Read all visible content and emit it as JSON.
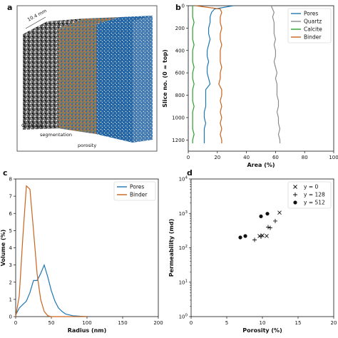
{
  "panel_labels": {
    "a": "a",
    "b": "b",
    "c": "c",
    "d": "d"
  },
  "panel_a": {
    "dimension": "10.4 mm",
    "labels": {
      "ct": "CT image",
      "segmentation": "segmentation",
      "porosity": "porosity"
    },
    "colors": {
      "ct": "#7a7a7a",
      "segmentation": "#8a7a5a",
      "porosity": "#2a6aa8"
    }
  },
  "chart_data": [
    {
      "panel": "b",
      "type": "line",
      "xlabel": "Area (%)",
      "ylabel": "Slice no. (0 = top)",
      "xlim": [
        0,
        100
      ],
      "ylim": [
        1300,
        0
      ],
      "y_inverted": true,
      "xticks": [
        "0",
        "20",
        "40",
        "60",
        "80",
        "100"
      ],
      "yticks": [
        "0",
        "200",
        "400",
        "600",
        "800",
        "1000",
        "1200"
      ],
      "legend_position": "top-right",
      "y": [
        0,
        30,
        60,
        100,
        150,
        200,
        250,
        300,
        350,
        400,
        450,
        500,
        550,
        600,
        650,
        700,
        750,
        800,
        850,
        900,
        950,
        1000,
        1050,
        1100,
        1150,
        1200,
        1230
      ],
      "series": [
        {
          "name": "Pores",
          "color": "#1f77b4",
          "values": [
            31,
            18,
            16,
            15,
            15,
            14,
            14,
            15,
            14,
            13,
            13,
            14,
            13,
            13,
            14,
            15,
            12,
            12,
            12,
            12,
            11,
            11,
            12,
            11,
            11,
            11,
            11
          ]
        },
        {
          "name": "Quartz",
          "color": "#8c8c8c",
          "values": [
            57,
            58,
            59,
            58,
            59,
            59,
            59,
            60,
            59,
            60,
            60,
            59,
            60,
            61,
            60,
            61,
            61,
            61,
            62,
            62,
            61,
            62,
            62,
            63,
            62,
            63,
            63
          ]
        },
        {
          "name": "Calcite",
          "color": "#2ca02c",
          "values": [
            3,
            3,
            3,
            3,
            4,
            3,
            3,
            3,
            4,
            3,
            3,
            3,
            4,
            3,
            3,
            4,
            3,
            3,
            3,
            4,
            3,
            3,
            3,
            3,
            4,
            3,
            3
          ]
        },
        {
          "name": "Binder",
          "color": "#c8641e",
          "values": [
            5,
            22,
            23,
            22,
            22,
            23,
            22,
            22,
            23,
            22,
            22,
            22,
            23,
            22,
            22,
            21,
            23,
            23,
            22,
            23,
            22,
            23,
            22,
            23,
            22,
            23,
            23
          ]
        }
      ]
    },
    {
      "panel": "c",
      "type": "line",
      "xlabel": "Radius (nm)",
      "ylabel": "Volume (%)",
      "xlim": [
        0,
        200
      ],
      "ylim": [
        0,
        8
      ],
      "xticks": [
        "0",
        "50",
        "100",
        "150",
        "200"
      ],
      "yticks": [
        "0",
        "1",
        "2",
        "3",
        "4",
        "5",
        "6",
        "7",
        "8"
      ],
      "legend_position": "top-right",
      "series": [
        {
          "name": "Pores",
          "color": "#1f77b4",
          "x": [
            0,
            5,
            10,
            15,
            20,
            25,
            30,
            35,
            40,
            45,
            50,
            55,
            60,
            65,
            70,
            75,
            80,
            90,
            100
          ],
          "values": [
            0.1,
            0.5,
            0.7,
            0.9,
            1.4,
            2.1,
            2.1,
            2.5,
            3.0,
            2.3,
            1.5,
            0.9,
            0.5,
            0.3,
            0.15,
            0.1,
            0.05,
            0.02,
            0
          ]
        },
        {
          "name": "Binder",
          "color": "#c8641e",
          "x": [
            0,
            5,
            10,
            15,
            20,
            25,
            30,
            35,
            40,
            45,
            50,
            60,
            100
          ],
          "values": [
            0,
            1.2,
            4.6,
            7.6,
            7.4,
            5.0,
            2.5,
            1.0,
            0.3,
            0.05,
            0,
            0,
            0
          ]
        }
      ]
    },
    {
      "panel": "d",
      "type": "scatter",
      "xlabel": "Porosity (%)",
      "ylabel": "Permeability (md)",
      "xlim": [
        0,
        20
      ],
      "ylim": [
        1,
        10000
      ],
      "y_scale": "log",
      "xticks": [
        "0",
        "5",
        "10",
        "15",
        "20"
      ],
      "yticks": [
        "10^0",
        "10^1",
        "10^2",
        "10^3",
        "10^4"
      ],
      "legend_position": "top-right",
      "series": [
        {
          "name": "y = 0",
          "marker": "x",
          "points": [
            [
              9.6,
              220
            ],
            [
              10.0,
              230
            ],
            [
              10.6,
              220
            ],
            [
              12.4,
              1050
            ]
          ]
        },
        {
          "name": "y = 128",
          "marker": "+",
          "points": [
            [
              8.9,
              170
            ],
            [
              9.8,
              210
            ],
            [
              10.8,
              400
            ],
            [
              11.1,
              380
            ],
            [
              11.8,
              600
            ]
          ]
        },
        {
          "name": "y = 512",
          "marker": "o",
          "points": [
            [
              6.9,
              200
            ],
            [
              7.6,
              220
            ],
            [
              9.8,
              820
            ],
            [
              10.7,
              980
            ]
          ]
        }
      ]
    }
  ]
}
